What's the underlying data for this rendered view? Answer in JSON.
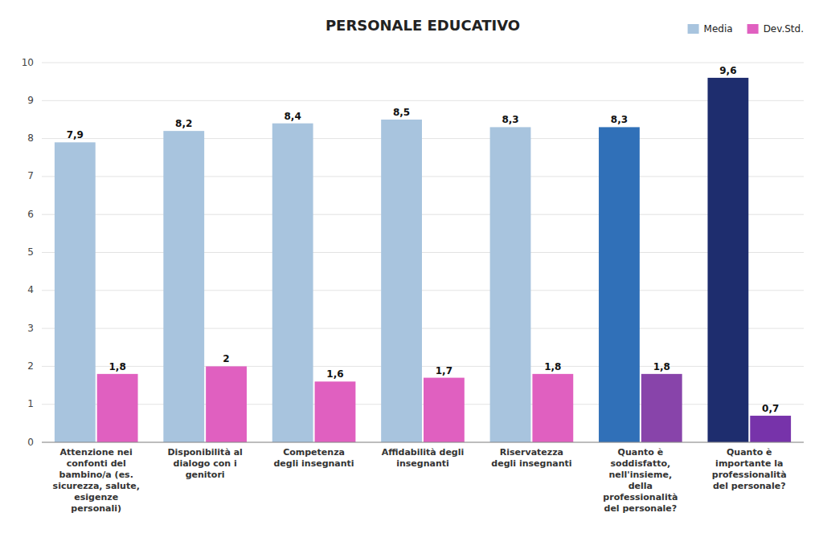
{
  "chart_data": {
    "type": "bar",
    "title": "PERSONALE EDUCATIVO",
    "categories": [
      "Attenzione nei\nconfonti del\nbambino/a (es.\nsicurezza, salute,\nesigenze\npersonali)",
      "Disponibilità al\ndialogo con i\ngenitori",
      "Competenza\ndegli insegnanti",
      "Affidabilità degli\ninsegnanti",
      "Riservatezza\ndegli insegnanti",
      "Quanto è\nsoddisfatto,\nnell'insieme,\ndella\nprofessionalità\ndel personale?",
      "Quanto è\nimportante la\nprofessionalità\ndel personale?"
    ],
    "series": [
      {
        "name": "Media",
        "color": "#a8c4de",
        "colors": [
          "#a8c4de",
          "#a8c4de",
          "#a8c4de",
          "#a8c4de",
          "#a8c4de",
          "#3070b8",
          "#1e2d6e"
        ],
        "values": [
          7.9,
          8.2,
          8.4,
          8.5,
          8.3,
          8.3,
          9.6
        ],
        "value_labels": [
          "7,9",
          "8,2",
          "8,4",
          "8,5",
          "8,3",
          "8,3",
          "9,6"
        ]
      },
      {
        "name": "Dev.Std.",
        "color": "#e060c0",
        "colors": [
          "#e060c0",
          "#e060c0",
          "#e060c0",
          "#e060c0",
          "#e060c0",
          "#8844aa",
          "#7733aa"
        ],
        "values": [
          1.8,
          2.0,
          1.6,
          1.7,
          1.8,
          1.8,
          0.7
        ],
        "value_labels": [
          "1,8",
          "2",
          "1,6",
          "1,7",
          "1,8",
          "1,8",
          "0,7"
        ]
      }
    ],
    "ylim": [
      0,
      10
    ],
    "yticks": [
      0,
      1,
      2,
      3,
      4,
      5,
      6,
      7,
      8,
      9,
      10
    ],
    "grid": true,
    "legend": "upper right",
    "data_labels": true
  }
}
